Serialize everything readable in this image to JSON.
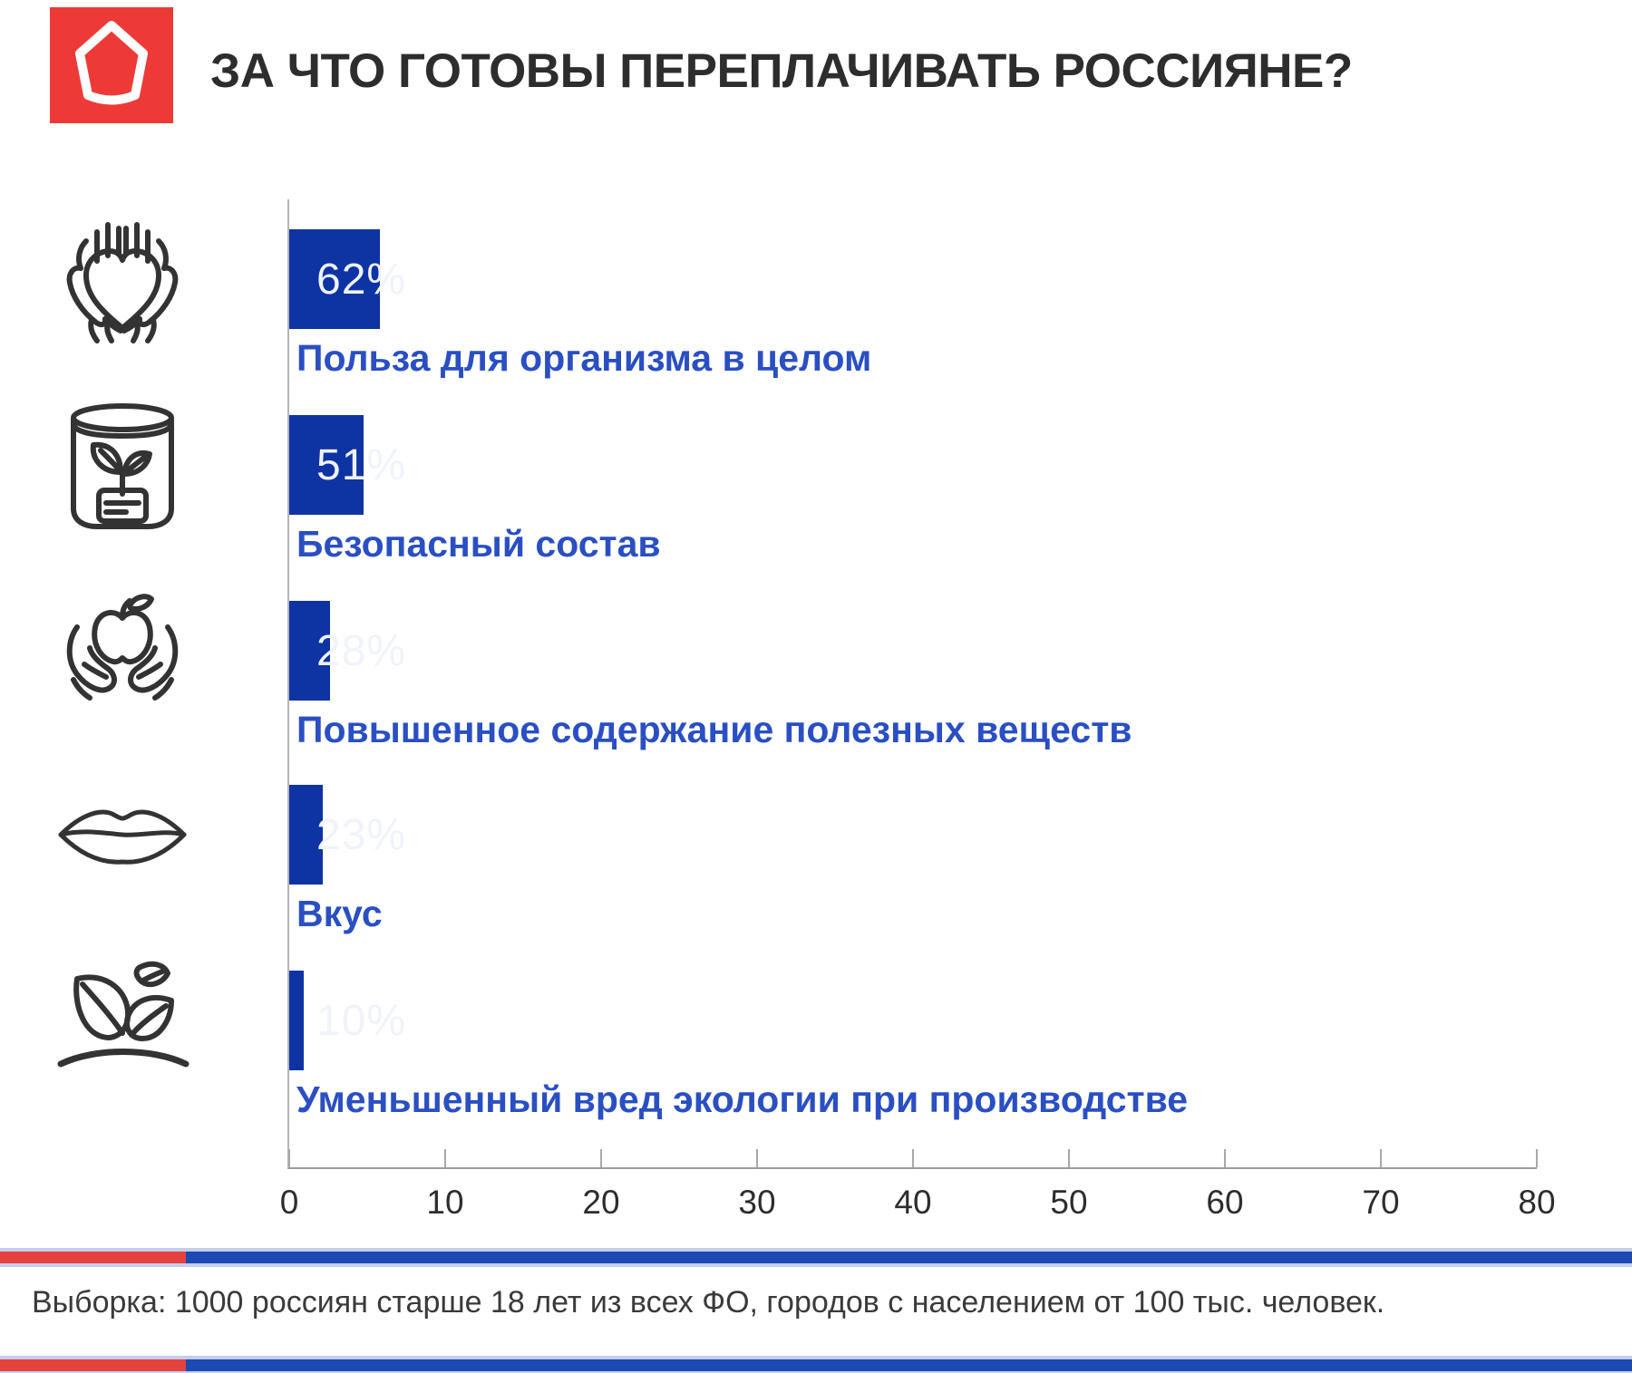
{
  "theme": {
    "accent_blue": "#0e34a3",
    "label_blue": "#2a4fc3",
    "logo_red": "#ee3a36",
    "stripe_red": "#e5423d",
    "stripe_blue": "#1c49b3",
    "stripe_halo": "#c4cfee",
    "text_dark": "#2d2d2d",
    "axis_gray": "#a8a8a8",
    "note_gray": "#3a3a3a",
    "bar_value_text": "#f0f3fc"
  },
  "header": {
    "logo_icon": "red-pentagon-logo"
  },
  "chart_data": {
    "type": "bar",
    "orientation": "horizontal",
    "title": "ЗА ЧТО ГОТОВЫ ПЕРЕПЛАЧИВАТЬ РОССИЯНЕ?",
    "categories": [
      "Польза для организма в целом",
      "Безопасный состав",
      "Повышенное содержание полезных веществ",
      "Вкус",
      "Уменьшенный вред экологии при производстве"
    ],
    "values": [
      62,
      51,
      28,
      23,
      10
    ],
    "value_labels": [
      "62%",
      "51%",
      "28%",
      "23%",
      "10%"
    ],
    "icons": [
      "hands-holding-heart-icon",
      "jar-with-sprout-icon",
      "hands-holding-apple-icon",
      "lips-icon",
      "leaves-icon"
    ],
    "xlabel": "",
    "ylabel": "",
    "xlim": [
      0,
      80
    ],
    "x_ticks": [
      0,
      10,
      20,
      30,
      40,
      50,
      60,
      70,
      80
    ],
    "grid": false,
    "legend": null,
    "bar_color": "#0e34a3",
    "category_label_color": "#2a4fc3"
  },
  "footer": {
    "note": "Выборка: 1000 россиян старше 18 лет  из всех ФО, городов с населением от 100 тыс. человек."
  }
}
